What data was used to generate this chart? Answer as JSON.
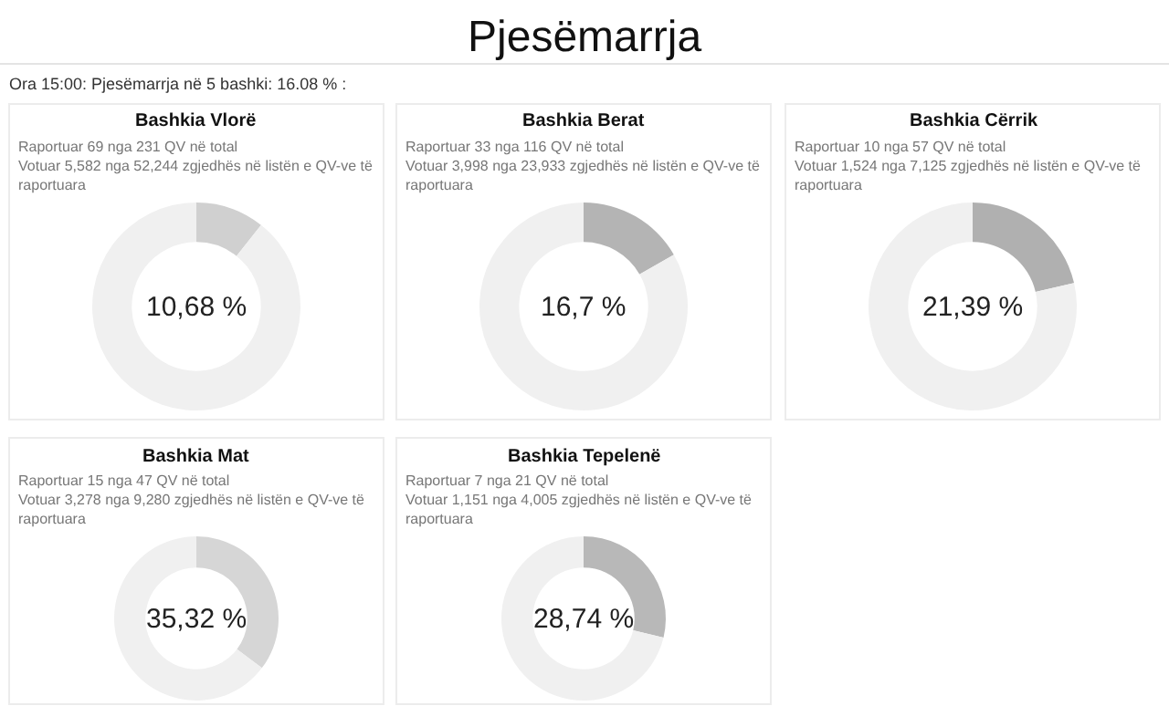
{
  "chart_data": [
    {
      "type": "other",
      "title": "Pjesëmarrja",
      "subtitle": "Ora 15:00: Pjesëmarrja në 5 bashki: 16.08 % :"
    },
    {
      "type": "donut",
      "title": "Bashkia Vlorë",
      "subtitle": "Raportuar 69 nga 231 QV në total",
      "annotations": [
        "Votuar 5,582 nga 52,244 zgjedhës në listën e QV-ve të raportuara",
        "10,68 %"
      ],
      "categories": [
        null,
        null
      ],
      "values": [
        10.68,
        89.32
      ],
      "colors": [
        "#d0d0d0",
        "#f0f0f0"
      ]
    },
    {
      "type": "donut",
      "title": "Bashkia Berat",
      "subtitle": "Raportuar 33 nga 116 QV në total",
      "annotations": [
        "Votuar 3,998 nga 23,933 zgjedhës në listën e QV-ve të raportuara",
        "16,7 %"
      ],
      "categories": [
        null,
        null
      ],
      "values": [
        16.7,
        83.3
      ],
      "colors": [
        "#b4b4b4",
        "#f0f0f0"
      ]
    },
    {
      "type": "donut",
      "title": "Bashkia Cërrik",
      "subtitle": "Raportuar 10 nga 57 QV në total",
      "annotations": [
        "Votuar 1,524 nga 7,125 zgjedhës në listën e QV-ve të raportuara",
        "21,39 %"
      ],
      "categories": [
        null,
        null
      ],
      "values": [
        21.39,
        78.61
      ],
      "colors": [
        "#b0b0b0",
        "#f0f0f0"
      ]
    },
    {
      "type": "donut",
      "title": "Bashkia Mat",
      "subtitle": "Raportuar 15 nga 47 QV në total",
      "annotations": [
        "Votuar 3,278 nga 9,280 zgjedhës në listën e QV-ve të raportuara",
        "35,32 %"
      ],
      "categories": [
        null,
        null
      ],
      "values": [
        35.32,
        64.68
      ],
      "colors": [
        "#d6d6d6",
        "#f0f0f0"
      ]
    },
    {
      "type": "donut",
      "title": "Bashkia Tepelenë",
      "subtitle": "Raportuar 7 nga 21 QV në total",
      "annotations": [
        "Votuar 1,151 nga 4,005 zgjedhës në listën e QV-ve të raportuara",
        "28,74 %"
      ],
      "categories": [
        null,
        null
      ],
      "values": [
        28.74,
        71.26
      ],
      "colors": [
        "#b8b8b8",
        "#f0f0f0"
      ]
    }
  ]
}
